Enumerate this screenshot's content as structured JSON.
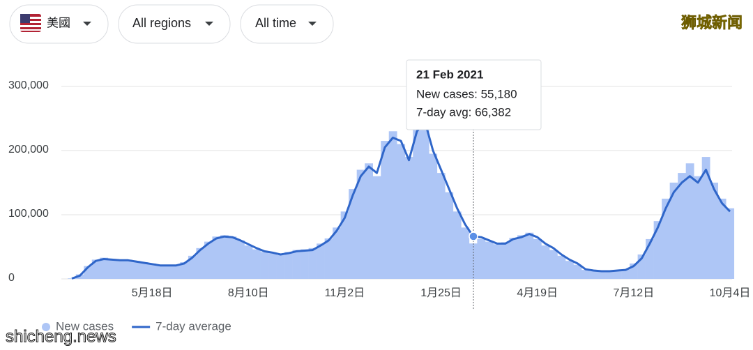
{
  "controls": [
    "美國",
    "All regions",
    "All time"
  ],
  "watermarks": [
    "狮城新闻",
    "shicheng.news"
  ],
  "chart_data": {
    "type": "bar-line",
    "categories": [
      null,
      null,
      null,
      null,
      null,
      null,
      null,
      null,
      null,
      null,
      "5月18日",
      null,
      null,
      null,
      null,
      null,
      null,
      null,
      null,
      null,
      null,
      null,
      "8月10日",
      null,
      null,
      null,
      null,
      null,
      null,
      null,
      null,
      null,
      null,
      null,
      "11月2日",
      null,
      null,
      null,
      null,
      null,
      null,
      null,
      null,
      null,
      null,
      null,
      "1月25日",
      null,
      null,
      null,
      null,
      null,
      null,
      null,
      null,
      null,
      null,
      null,
      "4月19日",
      null,
      null,
      null,
      null,
      null,
      null,
      null,
      null,
      null,
      null,
      null,
      "7月12日",
      null,
      null,
      null,
      null,
      null,
      null,
      null,
      null,
      null,
      null,
      null,
      "10月4日"
    ],
    "series": [
      {
        "name": "New cases",
        "color": "#aec6f6",
        "mark": "bar",
        "values": [
          800,
          7000,
          20000,
          30000,
          33000,
          31000,
          30000,
          30000,
          28000,
          26000,
          24000,
          22000,
          22000,
          22000,
          26000,
          36000,
          48000,
          58000,
          66000,
          68000,
          66000,
          60000,
          52000,
          46000,
          42000,
          40000,
          37000,
          42000,
          45000,
          46000,
          48000,
          55000,
          63000,
          80000,
          105000,
          140000,
          170000,
          180000,
          160000,
          215000,
          230000,
          210000,
          190000,
          240000,
          250000,
          195000,
          165000,
          135000,
          105000,
          80000,
          55180,
          62000,
          58000,
          54000,
          57000,
          64000,
          68000,
          72000,
          62000,
          52000,
          45000,
          36000,
          28000,
          22000,
          14000,
          12000,
          11000,
          11000,
          12000,
          15000,
          24000,
          38000,
          62000,
          90000,
          125000,
          150000,
          165000,
          180000,
          160000,
          190000,
          150000,
          125000,
          110000
        ]
      },
      {
        "name": "7-day average",
        "color": "#2f66c9",
        "mark": "line",
        "values": [
          500,
          5000,
          18000,
          28000,
          31000,
          30000,
          29000,
          29000,
          27000,
          25000,
          23000,
          21000,
          21000,
          21000,
          24000,
          33000,
          45000,
          55000,
          63000,
          66000,
          65000,
          60000,
          54000,
          48000,
          43000,
          41000,
          38000,
          40000,
          43000,
          44000,
          45000,
          52000,
          60000,
          75000,
          95000,
          130000,
          160000,
          175000,
          165000,
          205000,
          220000,
          215000,
          185000,
          230000,
          245000,
          200000,
          170000,
          140000,
          110000,
          85000,
          66382,
          65000,
          60000,
          55000,
          55000,
          62000,
          65000,
          70000,
          65000,
          55000,
          48000,
          38000,
          30000,
          24000,
          15000,
          13000,
          12000,
          12000,
          13000,
          14000,
          20000,
          32000,
          55000,
          80000,
          110000,
          135000,
          150000,
          160000,
          150000,
          170000,
          140000,
          118000,
          105000
        ]
      }
    ],
    "ylim": [
      0,
      340000
    ],
    "yticks": [
      0,
      {
        "value": 100000,
        "label": "100,000"
      },
      {
        "value": 200000,
        "label": "200,000"
      },
      {
        "value": 300000,
        "label": "300,000"
      }
    ],
    "grid": true,
    "legend": "bottom-left",
    "tooltip": {
      "title": "21 Feb 2021",
      "lines": [
        "New cases: 55,180",
        "7-day avg: 66,382"
      ]
    }
  }
}
